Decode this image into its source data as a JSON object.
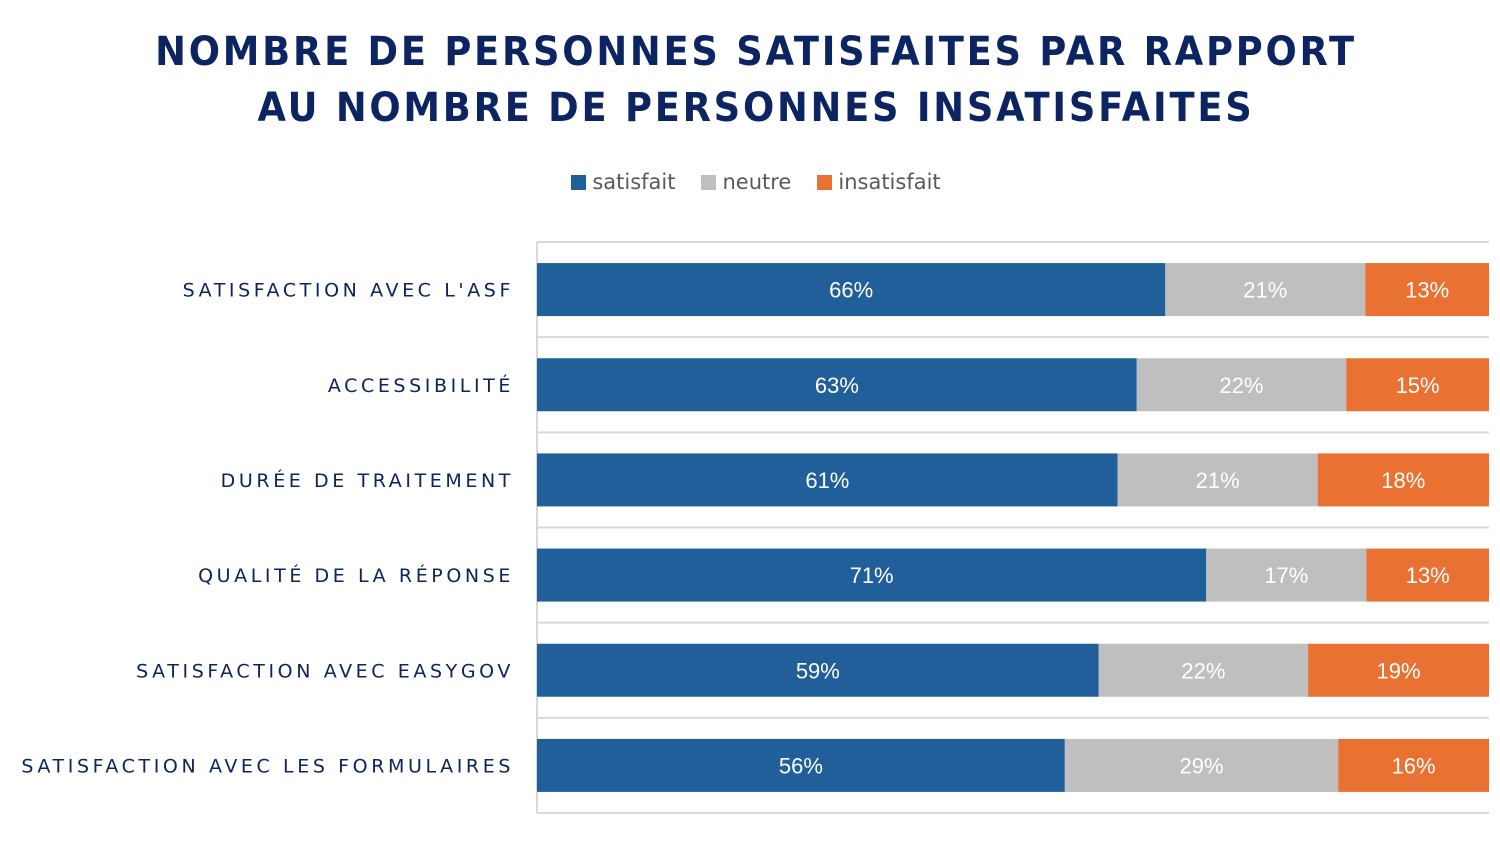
{
  "chart_data": {
    "type": "bar",
    "orientation": "horizontal",
    "stacked": true,
    "percent_stacked": true,
    "title": "NOMBRE DE PERSONNES SATISFAITES PAR RAPPORT AU NOMBRE DE PERSONNES INSATISFAITES",
    "title_lines": [
      "NOMBRE DE PERSONNES SATISFAITES PAR RAPPORT",
      "AU NOMBRE DE PERSONNES INSATISFAITES"
    ],
    "xlabel": "",
    "ylabel": "",
    "xlim": [
      0,
      100
    ],
    "grid": true,
    "legend_position": "top",
    "categories": [
      "SATISFACTION AVEC L'ASF",
      "ACCESSIBILITÉ",
      "DURÉE DE TRAITEMENT",
      "QUALITÉ DE LA RÉPONSE",
      "SATISFACTION AVEC EASYGOV",
      "SATISFACTION AVEC LES FORMULAIRES"
    ],
    "series": [
      {
        "name": "satisfait",
        "color": "#215f9a",
        "values": [
          66,
          63,
          61,
          71,
          59,
          56
        ]
      },
      {
        "name": "neutre",
        "color": "#bfbfbf",
        "values": [
          21,
          22,
          21,
          17,
          22,
          29
        ]
      },
      {
        "name": "insatisfait",
        "color": "#e97132",
        "values": [
          13,
          15,
          18,
          13,
          19,
          16
        ]
      }
    ],
    "value_suffix": "%"
  }
}
